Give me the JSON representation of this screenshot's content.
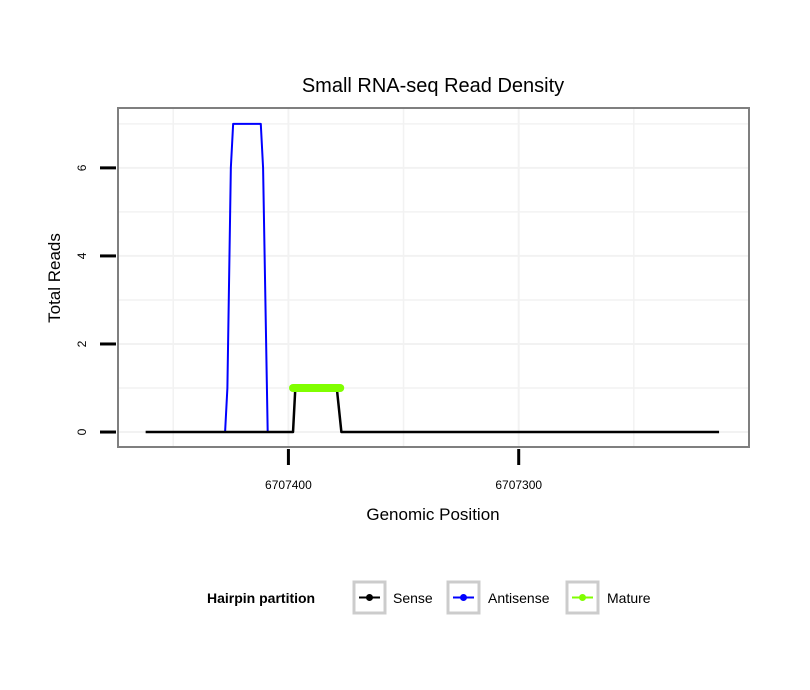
{
  "chart_data": {
    "type": "line",
    "title": "Small RNA-seq Read Density",
    "xlabel": "Genomic Position",
    "ylabel": "Total Reads",
    "xlim": [
      6707474,
      6707200
    ],
    "ylim": [
      -0.34,
      7.36
    ],
    "x_reversed": true,
    "grid": true,
    "xticks": [
      {
        "value": 6707400,
        "label": "6707400"
      },
      {
        "value": 6707300,
        "label": "6707300"
      }
    ],
    "yticks": [
      {
        "value": 0,
        "label": "0"
      },
      {
        "value": 2,
        "label": "2"
      },
      {
        "value": 4,
        "label": "4"
      },
      {
        "value": 6,
        "label": "6"
      }
    ],
    "legend": {
      "title": "Hairpin partition",
      "placement": "bottom"
    },
    "series": [
      {
        "name": "Sense",
        "color": "#000000",
        "width": 2.5,
        "points": [
          [
            6707462,
            0
          ],
          [
            6707398,
            0
          ],
          [
            6707397,
            1
          ],
          [
            6707379,
            1
          ],
          [
            6707377,
            0
          ],
          [
            6707213,
            0
          ]
        ]
      },
      {
        "name": "Antisense",
        "color": "#0000ff",
        "width": 2,
        "points": [
          [
            6707427.5,
            0
          ],
          [
            6707426.5,
            1
          ],
          [
            6707425,
            6
          ],
          [
            6707424,
            7
          ],
          [
            6707412,
            7
          ],
          [
            6707411,
            6
          ],
          [
            6707409,
            0
          ]
        ]
      },
      {
        "name": "Mature",
        "color": "#80ff00",
        "width": 8,
        "points": [
          [
            6707398,
            1
          ],
          [
            6707377.5,
            1
          ]
        ]
      }
    ]
  }
}
